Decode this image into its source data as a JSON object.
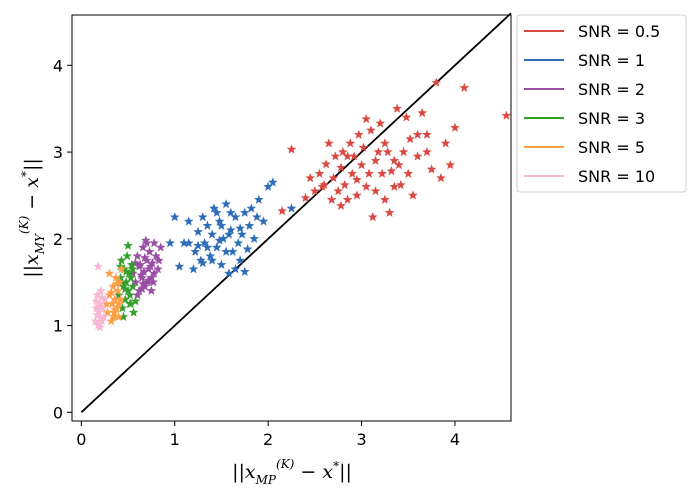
{
  "chart_data": {
    "type": "scatter",
    "title": "",
    "xlabel": "||x_MP^(K) − x*||",
    "ylabel": "||x_MY^(K) − x*||",
    "xlim": [
      -0.1,
      4.6
    ],
    "ylim": [
      -0.1,
      4.58
    ],
    "x_ticks": [
      "0",
      "1",
      "2",
      "3",
      "4"
    ],
    "y_ticks": [
      "0",
      "1",
      "2",
      "3",
      "4"
    ],
    "marker": "star",
    "legend_position": "outside-top-right",
    "reference_line": {
      "from": [
        0,
        0
      ],
      "to": [
        4.6,
        4.6
      ],
      "color": "#000000"
    },
    "series": [
      {
        "name": "SNR = 0.5",
        "color": "#d94841",
        "points": [
          [
            2.15,
            2.32
          ],
          [
            2.25,
            3.03
          ],
          [
            2.4,
            2.47
          ],
          [
            2.45,
            2.7
          ],
          [
            2.5,
            2.55
          ],
          [
            2.55,
            2.75
          ],
          [
            2.6,
            2.62
          ],
          [
            2.62,
            2.86
          ],
          [
            2.68,
            2.45
          ],
          [
            2.7,
            2.7
          ],
          [
            2.72,
            2.95
          ],
          [
            2.75,
            2.55
          ],
          [
            2.78,
            2.82
          ],
          [
            2.8,
            3.0
          ],
          [
            2.82,
            2.62
          ],
          [
            2.85,
            2.45
          ],
          [
            2.88,
            3.1
          ],
          [
            2.9,
            2.75
          ],
          [
            2.92,
            2.95
          ],
          [
            2.95,
            2.68
          ],
          [
            2.97,
            3.2
          ],
          [
            3.0,
            2.85
          ],
          [
            3.02,
            3.05
          ],
          [
            3.05,
            2.6
          ],
          [
            3.08,
            2.75
          ],
          [
            3.1,
            3.25
          ],
          [
            3.12,
            2.25
          ],
          [
            3.15,
            2.9
          ],
          [
            3.18,
            3.0
          ],
          [
            3.2,
            3.33
          ],
          [
            3.22,
            2.75
          ],
          [
            3.25,
            2.45
          ],
          [
            3.28,
            3.0
          ],
          [
            3.3,
            2.3
          ],
          [
            3.32,
            2.78
          ],
          [
            3.35,
            2.9
          ],
          [
            3.38,
            3.5
          ],
          [
            3.4,
            2.85
          ],
          [
            3.42,
            2.62
          ],
          [
            3.45,
            3.0
          ],
          [
            3.48,
            3.4
          ],
          [
            3.5,
            2.75
          ],
          [
            3.55,
            2.5
          ],
          [
            3.6,
            3.2
          ],
          [
            3.65,
            3.45
          ],
          [
            3.7,
            3.0
          ],
          [
            3.75,
            2.8
          ],
          [
            3.8,
            3.8
          ],
          [
            3.85,
            2.7
          ],
          [
            3.9,
            3.1
          ],
          [
            4.0,
            3.28
          ],
          [
            4.1,
            3.74
          ],
          [
            3.7,
            3.2
          ],
          [
            3.35,
            2.6
          ],
          [
            2.58,
            2.6
          ],
          [
            2.65,
            3.1
          ],
          [
            2.95,
            2.5
          ],
          [
            3.05,
            3.38
          ],
          [
            3.25,
            3.1
          ],
          [
            2.85,
            2.95
          ],
          [
            3.6,
            2.95
          ],
          [
            3.15,
            2.55
          ],
          [
            2.78,
            2.38
          ],
          [
            3.52,
            3.15
          ],
          [
            3.95,
            2.85
          ],
          [
            4.55,
            3.42
          ]
        ]
      },
      {
        "name": "SNR = 1",
        "color": "#2c6cb8",
        "points": [
          [
            0.95,
            1.95
          ],
          [
            1.0,
            2.25
          ],
          [
            1.05,
            1.68
          ],
          [
            1.1,
            1.95
          ],
          [
            1.15,
            2.2
          ],
          [
            1.2,
            1.65
          ],
          [
            1.22,
            1.85
          ],
          [
            1.25,
            2.08
          ],
          [
            1.28,
            1.75
          ],
          [
            1.3,
            2.25
          ],
          [
            1.32,
            1.95
          ],
          [
            1.35,
            2.15
          ],
          [
            1.38,
            1.8
          ],
          [
            1.4,
            2.05
          ],
          [
            1.42,
            2.35
          ],
          [
            1.45,
            1.9
          ],
          [
            1.48,
            2.2
          ],
          [
            1.5,
            1.7
          ],
          [
            1.52,
            2.0
          ],
          [
            1.55,
            2.4
          ],
          [
            1.58,
            1.6
          ],
          [
            1.6,
            2.1
          ],
          [
            1.62,
            1.85
          ],
          [
            1.65,
            2.25
          ],
          [
            1.68,
            1.95
          ],
          [
            1.7,
            1.75
          ],
          [
            1.72,
            2.05
          ],
          [
            1.75,
            2.3
          ],
          [
            1.78,
            1.88
          ],
          [
            1.8,
            2.15
          ],
          [
            1.85,
            2.0
          ],
          [
            1.9,
            2.45
          ],
          [
            1.95,
            2.2
          ],
          [
            2.0,
            2.6
          ],
          [
            2.05,
            2.65
          ],
          [
            1.4,
            1.75
          ],
          [
            1.45,
            2.3
          ],
          [
            1.55,
            1.85
          ],
          [
            1.6,
            2.3
          ],
          [
            1.65,
            1.65
          ],
          [
            1.35,
            1.9
          ],
          [
            1.5,
            2.15
          ],
          [
            1.7,
            2.12
          ],
          [
            1.25,
            1.92
          ],
          [
            1.15,
            1.95
          ],
          [
            1.75,
            1.62
          ],
          [
            1.82,
            2.35
          ],
          [
            1.88,
            2.25
          ],
          [
            2.25,
            2.35
          ],
          [
            1.3,
            1.72
          ],
          [
            1.48,
            1.98
          ],
          [
            1.58,
            2.05
          ]
        ]
      },
      {
        "name": "SNR = 2",
        "color": "#984ea3",
        "points": [
          [
            0.55,
            1.6
          ],
          [
            0.58,
            1.5
          ],
          [
            0.6,
            1.8
          ],
          [
            0.62,
            1.4
          ],
          [
            0.63,
            1.7
          ],
          [
            0.65,
            1.55
          ],
          [
            0.66,
            1.9
          ],
          [
            0.67,
            1.62
          ],
          [
            0.68,
            1.45
          ],
          [
            0.7,
            1.75
          ],
          [
            0.71,
            1.5
          ],
          [
            0.72,
            1.65
          ],
          [
            0.73,
            1.85
          ],
          [
            0.75,
            1.55
          ],
          [
            0.76,
            1.72
          ],
          [
            0.78,
            1.6
          ],
          [
            0.8,
            1.8
          ],
          [
            0.82,
            1.65
          ],
          [
            0.85,
            1.9
          ],
          [
            0.6,
            1.35
          ],
          [
            0.65,
            1.42
          ],
          [
            0.7,
            1.95
          ],
          [
            0.75,
            1.4
          ],
          [
            0.78,
            1.95
          ],
          [
            0.62,
            1.68
          ],
          [
            0.68,
            1.78
          ],
          [
            0.72,
            1.52
          ],
          [
            0.74,
            1.68
          ],
          [
            0.64,
            1.58
          ],
          [
            0.58,
            1.72
          ],
          [
            0.77,
            1.5
          ],
          [
            0.83,
            1.75
          ],
          [
            0.69,
            1.98
          ],
          [
            0.66,
            1.48
          ]
        ]
      },
      {
        "name": "SNR = 3",
        "color": "#33a02c",
        "points": [
          [
            0.4,
            1.35
          ],
          [
            0.42,
            1.55
          ],
          [
            0.43,
            1.75
          ],
          [
            0.44,
            1.2
          ],
          [
            0.45,
            1.45
          ],
          [
            0.46,
            1.65
          ],
          [
            0.47,
            1.3
          ],
          [
            0.48,
            1.5
          ],
          [
            0.49,
            1.8
          ],
          [
            0.5,
            1.4
          ],
          [
            0.51,
            1.6
          ],
          [
            0.52,
            1.25
          ],
          [
            0.53,
            1.55
          ],
          [
            0.54,
            1.7
          ],
          [
            0.55,
            1.45
          ],
          [
            0.56,
            1.15
          ],
          [
            0.5,
            1.92
          ],
          [
            0.45,
            1.1
          ],
          [
            0.48,
            1.62
          ],
          [
            0.52,
            1.35
          ],
          [
            0.44,
            1.5
          ],
          [
            0.55,
            1.65
          ],
          [
            0.47,
            1.42
          ],
          [
            0.53,
            1.25
          ],
          [
            0.42,
            1.68
          ],
          [
            0.58,
            1.28
          ]
        ]
      },
      {
        "name": "SNR = 5",
        "color": "#ff9f45",
        "points": [
          [
            0.28,
            1.15
          ],
          [
            0.3,
            1.35
          ],
          [
            0.32,
            1.05
          ],
          [
            0.33,
            1.25
          ],
          [
            0.34,
            1.45
          ],
          [
            0.35,
            1.15
          ],
          [
            0.36,
            1.3
          ],
          [
            0.37,
            1.55
          ],
          [
            0.38,
            1.2
          ],
          [
            0.39,
            1.4
          ],
          [
            0.4,
            1.1
          ],
          [
            0.41,
            1.5
          ],
          [
            0.42,
            1.3
          ],
          [
            0.43,
            1.65
          ],
          [
            0.3,
            1.6
          ],
          [
            0.35,
            1.1
          ],
          [
            0.38,
            1.48
          ],
          [
            0.32,
            1.38
          ],
          [
            0.4,
            1.25
          ],
          [
            0.36,
            1.18
          ],
          [
            0.27,
            1.25
          ]
        ]
      },
      {
        "name": "SNR = 10",
        "color": "#f7b6d2",
        "points": [
          [
            0.15,
            1.05
          ],
          [
            0.16,
            1.2
          ],
          [
            0.17,
            1.35
          ],
          [
            0.18,
            1.0
          ],
          [
            0.19,
            1.15
          ],
          [
            0.2,
            1.25
          ],
          [
            0.21,
            1.4
          ],
          [
            0.22,
            1.05
          ],
          [
            0.23,
            1.2
          ],
          [
            0.24,
            1.1
          ],
          [
            0.25,
            1.3
          ],
          [
            0.2,
            0.98
          ],
          [
            0.18,
            1.68
          ],
          [
            0.17,
            1.12
          ],
          [
            0.22,
            1.32
          ],
          [
            0.19,
            1.22
          ],
          [
            0.21,
            1.08
          ],
          [
            0.16,
            1.28
          ]
        ]
      }
    ]
  }
}
